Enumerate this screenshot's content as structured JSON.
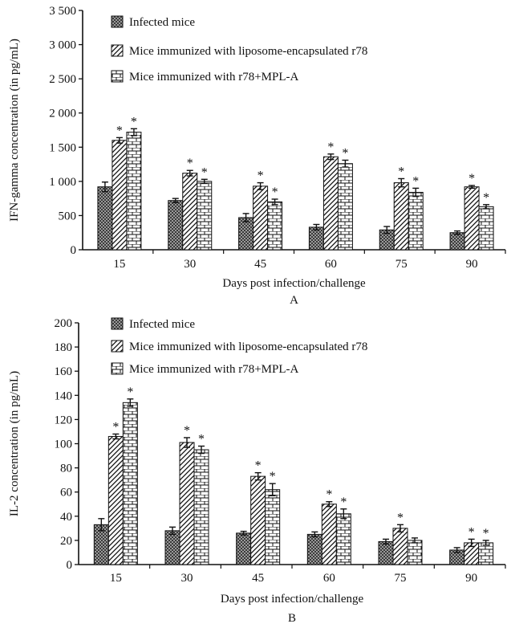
{
  "chart_data": [
    {
      "id": "A",
      "type": "bar",
      "panel_label": "A",
      "title": "",
      "xlabel": "Days post infection/challenge",
      "ylabel": "IFN-gamma concentration (in pg/mL)",
      "ylim": [
        0,
        3500
      ],
      "yticks": [
        0,
        500,
        1000,
        1500,
        2000,
        2500,
        3000,
        3500
      ],
      "ytick_labels": [
        "0",
        "500",
        "1 000",
        "1 500",
        "2 000",
        "2 500",
        "3 000",
        "3 500"
      ],
      "categories": [
        "15",
        "30",
        "45",
        "60",
        "75",
        "90"
      ],
      "legend_position": "top-left",
      "series": [
        {
          "name": "Infected mice",
          "pattern": "dots",
          "values": [
            920,
            720,
            470,
            330,
            290,
            250
          ],
          "errors": [
            70,
            30,
            60,
            40,
            50,
            25
          ],
          "significant": [
            false,
            false,
            false,
            false,
            false,
            false
          ]
        },
        {
          "name": "Mice immunized with liposome-encapsulated r78",
          "pattern": "diagonal",
          "values": [
            1600,
            1120,
            930,
            1360,
            980,
            920
          ],
          "errors": [
            40,
            40,
            50,
            40,
            60,
            20
          ],
          "significant": [
            true,
            true,
            true,
            true,
            true,
            true
          ]
        },
        {
          "name": "Mice immunized with r78+MPL-A",
          "pattern": "brick",
          "values": [
            1720,
            1000,
            700,
            1260,
            840,
            630
          ],
          "errors": [
            50,
            30,
            40,
            50,
            60,
            30
          ],
          "significant": [
            true,
            true,
            true,
            true,
            true,
            true
          ]
        }
      ]
    },
    {
      "id": "B",
      "type": "bar",
      "panel_label": "B",
      "title": "",
      "xlabel": "Days post infection/challenge",
      "ylabel": "IL-2 concentration (in pg/mL)",
      "ylim": [
        0,
        200
      ],
      "yticks": [
        0,
        20,
        40,
        60,
        80,
        100,
        120,
        140,
        160,
        180,
        200
      ],
      "ytick_labels": [
        "0",
        "20",
        "40",
        "60",
        "80",
        "100",
        "120",
        "140",
        "160",
        "180",
        "200"
      ],
      "categories": [
        "15",
        "30",
        "45",
        "60",
        "75",
        "90"
      ],
      "legend_position": "top-left",
      "series": [
        {
          "name": "Infected mice",
          "pattern": "dots",
          "values": [
            33,
            28,
            26,
            25,
            19,
            12
          ],
          "errors": [
            5,
            3,
            1.5,
            2,
            2,
            2
          ],
          "significant": [
            false,
            false,
            false,
            false,
            false,
            false
          ]
        },
        {
          "name": "Mice immunized with liposome-encapsulated r78",
          "pattern": "diagonal",
          "values": [
            106,
            101,
            73,
            50,
            30,
            18
          ],
          "errors": [
            2,
            4,
            3,
            2,
            3,
            3
          ],
          "significant": [
            true,
            true,
            true,
            true,
            true,
            true
          ]
        },
        {
          "name": "Mice immunized with r78+MPL-A",
          "pattern": "brick",
          "values": [
            134,
            95,
            62,
            42,
            20,
            18
          ],
          "errors": [
            3,
            3,
            5,
            4,
            2,
            2
          ],
          "significant": [
            true,
            true,
            true,
            true,
            false,
            true
          ]
        }
      ]
    }
  ]
}
